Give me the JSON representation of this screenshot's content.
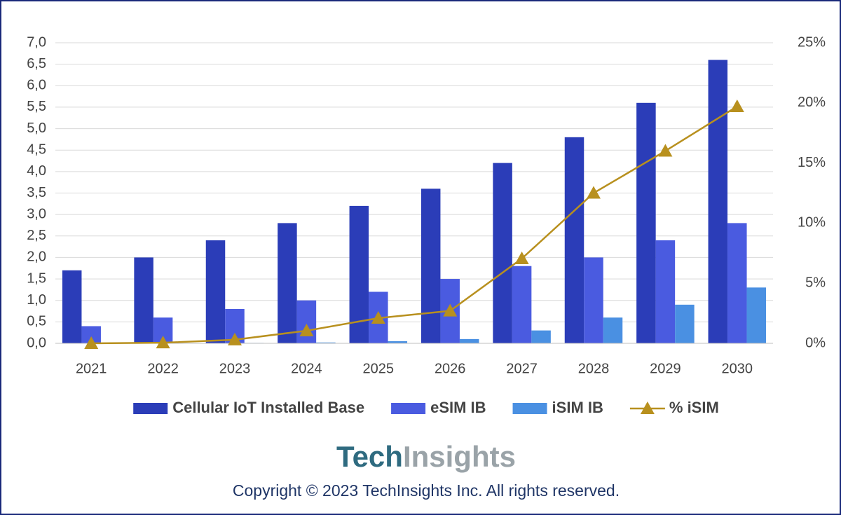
{
  "chart_data": {
    "type": "bar",
    "categories": [
      "2021",
      "2022",
      "2023",
      "2024",
      "2025",
      "2026",
      "2027",
      "2028",
      "2029",
      "2030"
    ],
    "series": [
      {
        "name": "Cellular IoT Installed Base",
        "color": "#2b3db8",
        "values": [
          1.7,
          2.0,
          2.4,
          2.8,
          3.2,
          3.6,
          4.2,
          4.8,
          5.6,
          6.6
        ]
      },
      {
        "name": "eSIM IB",
        "color": "#4a5be0",
        "values": [
          0.4,
          0.6,
          0.8,
          1.0,
          1.2,
          1.5,
          1.8,
          2.0,
          2.4,
          2.8
        ]
      },
      {
        "name": "iSIM IB",
        "color": "#4a90e2",
        "values": [
          0,
          0,
          0.01,
          0.02,
          0.05,
          0.1,
          0.3,
          0.6,
          0.9,
          1.3
        ]
      },
      {
        "name": "% iSIM",
        "color": "#b8901e",
        "type": "line",
        "axis": "y2",
        "values": [
          0,
          0.05,
          0.3,
          1.05,
          2.1,
          2.7,
          7.05,
          12.5,
          16.0,
          19.7
        ]
      }
    ],
    "ylim": [
      0,
      7
    ],
    "yticks": [
      {
        "value": 0,
        "label": "0,0"
      },
      {
        "value": 0.5,
        "label": "0,5"
      },
      {
        "value": 1,
        "label": "1,0"
      },
      {
        "value": 1.5,
        "label": "1,5"
      },
      {
        "value": 2,
        "label": "2,0"
      },
      {
        "value": 2.5,
        "label": "2,5"
      },
      {
        "value": 3,
        "label": "3,0"
      },
      {
        "value": 3.5,
        "label": "3,5"
      },
      {
        "value": 4,
        "label": "4,0"
      },
      {
        "value": 4.5,
        "label": "4,5"
      },
      {
        "value": 5,
        "label": "5,0"
      },
      {
        "value": 5.5,
        "label": "5,5"
      },
      {
        "value": 6,
        "label": "6,0"
      },
      {
        "value": 6.5,
        "label": "6,5"
      },
      {
        "value": 7,
        "label": "7,0"
      }
    ],
    "y2lim": [
      0,
      25
    ],
    "y2ticks": [
      {
        "value": 0,
        "label": "0%"
      },
      {
        "value": 5,
        "label": "5%"
      },
      {
        "value": 10,
        "label": "10%"
      },
      {
        "value": 15,
        "label": "15%"
      },
      {
        "value": 20,
        "label": "20%"
      },
      {
        "value": 25,
        "label": "25%"
      }
    ],
    "grid": true,
    "legend": "bottom"
  },
  "footer": {
    "logo_tech": "Tech",
    "logo_insights": "Insights",
    "copyright": "Copyright © 2023 TechInsights Inc.  All rights reserved."
  }
}
